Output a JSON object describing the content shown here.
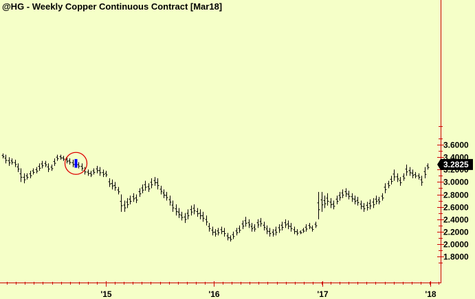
{
  "chart_data": {
    "type": "ohlc",
    "title": "@HG - Weekly  Copper Continuous Contract [Mar18]",
    "xlabel": "",
    "ylabel": "",
    "ylim": [
      1.6,
      4.0
    ],
    "yticks": [
      "1.8000",
      "2.0000",
      "2.2000",
      "2.4000",
      "2.6000",
      "2.8000",
      "3.0000",
      "3.2000",
      "3.4000",
      "3.6000"
    ],
    "xticks": [
      "'15",
      "'16",
      "'17",
      "'18"
    ],
    "last_price_label": "3.2825",
    "grid": false,
    "colors": {
      "background": "#f5ffc8",
      "axis": "#cc0000",
      "bars": "#000000",
      "highlight_bar": "#0000ff",
      "highlight_circle": "#dd0000",
      "last_price_box": "#000000"
    },
    "highlight_index": 24,
    "bars": [
      {
        "h": 3.46,
        "l": 3.38
      },
      {
        "h": 3.44,
        "l": 3.3
      },
      {
        "h": 3.4,
        "l": 3.26
      },
      {
        "h": 3.38,
        "l": 3.28
      },
      {
        "h": 3.36,
        "l": 3.24
      },
      {
        "h": 3.3,
        "l": 3.16
      },
      {
        "h": 3.22,
        "l": 3.0
      },
      {
        "h": 3.14,
        "l": 2.98
      },
      {
        "h": 3.14,
        "l": 3.04
      },
      {
        "h": 3.18,
        "l": 3.06
      },
      {
        "h": 3.22,
        "l": 3.12
      },
      {
        "h": 3.24,
        "l": 3.14
      },
      {
        "h": 3.3,
        "l": 3.18
      },
      {
        "h": 3.34,
        "l": 3.22
      },
      {
        "h": 3.34,
        "l": 3.24
      },
      {
        "h": 3.3,
        "l": 3.16
      },
      {
        "h": 3.28,
        "l": 3.18
      },
      {
        "h": 3.38,
        "l": 3.26
      },
      {
        "h": 3.44,
        "l": 3.34
      },
      {
        "h": 3.44,
        "l": 3.36
      },
      {
        "h": 3.42,
        "l": 3.34
      },
      {
        "h": 3.4,
        "l": 3.3
      },
      {
        "h": 3.38,
        "l": 3.28
      },
      {
        "h": 3.36,
        "l": 3.24
      },
      {
        "h": 3.37,
        "l": 3.23
      },
      {
        "h": 3.32,
        "l": 3.22
      },
      {
        "h": 3.3,
        "l": 3.18
      },
      {
        "h": 3.24,
        "l": 3.12
      },
      {
        "h": 3.2,
        "l": 3.1
      },
      {
        "h": 3.18,
        "l": 3.08
      },
      {
        "h": 3.22,
        "l": 3.12
      },
      {
        "h": 3.26,
        "l": 3.14
      },
      {
        "h": 3.24,
        "l": 3.1
      },
      {
        "h": 3.2,
        "l": 3.08
      },
      {
        "h": 3.18,
        "l": 3.08
      },
      {
        "h": 3.06,
        "l": 2.92
      },
      {
        "h": 3.04,
        "l": 2.88
      },
      {
        "h": 3.0,
        "l": 2.86
      },
      {
        "h": 2.92,
        "l": 2.8
      },
      {
        "h": 2.8,
        "l": 2.52
      },
      {
        "h": 2.7,
        "l": 2.52
      },
      {
        "h": 2.74,
        "l": 2.58
      },
      {
        "h": 2.78,
        "l": 2.64
      },
      {
        "h": 2.82,
        "l": 2.68
      },
      {
        "h": 2.8,
        "l": 2.66
      },
      {
        "h": 2.9,
        "l": 2.76
      },
      {
        "h": 2.96,
        "l": 2.82
      },
      {
        "h": 3.02,
        "l": 2.86
      },
      {
        "h": 2.98,
        "l": 2.84
      },
      {
        "h": 3.06,
        "l": 2.9
      },
      {
        "h": 3.08,
        "l": 2.94
      },
      {
        "h": 3.06,
        "l": 2.88
      },
      {
        "h": 2.94,
        "l": 2.8
      },
      {
        "h": 2.88,
        "l": 2.74
      },
      {
        "h": 2.84,
        "l": 2.7
      },
      {
        "h": 2.78,
        "l": 2.62
      },
      {
        "h": 2.7,
        "l": 2.52
      },
      {
        "h": 2.64,
        "l": 2.46
      },
      {
        "h": 2.58,
        "l": 2.42
      },
      {
        "h": 2.52,
        "l": 2.38
      },
      {
        "h": 2.5,
        "l": 2.34
      },
      {
        "h": 2.56,
        "l": 2.4
      },
      {
        "h": 2.62,
        "l": 2.46
      },
      {
        "h": 2.64,
        "l": 2.48
      },
      {
        "h": 2.58,
        "l": 2.44
      },
      {
        "h": 2.56,
        "l": 2.4
      },
      {
        "h": 2.52,
        "l": 2.36
      },
      {
        "h": 2.46,
        "l": 2.3
      },
      {
        "h": 2.34,
        "l": 2.2
      },
      {
        "h": 2.28,
        "l": 2.14
      },
      {
        "h": 2.24,
        "l": 2.12
      },
      {
        "h": 2.26,
        "l": 2.14
      },
      {
        "h": 2.28,
        "l": 2.16
      },
      {
        "h": 2.26,
        "l": 2.12
      },
      {
        "h": 2.18,
        "l": 2.06
      },
      {
        "h": 2.14,
        "l": 2.04
      },
      {
        "h": 2.2,
        "l": 2.08
      },
      {
        "h": 2.26,
        "l": 2.14
      },
      {
        "h": 2.3,
        "l": 2.18
      },
      {
        "h": 2.38,
        "l": 2.24
      },
      {
        "h": 2.44,
        "l": 2.28
      },
      {
        "h": 2.4,
        "l": 2.26
      },
      {
        "h": 2.34,
        "l": 2.2
      },
      {
        "h": 2.32,
        "l": 2.2
      },
      {
        "h": 2.4,
        "l": 2.26
      },
      {
        "h": 2.42,
        "l": 2.28
      },
      {
        "h": 2.36,
        "l": 2.22
      },
      {
        "h": 2.3,
        "l": 2.16
      },
      {
        "h": 2.26,
        "l": 2.12
      },
      {
        "h": 2.24,
        "l": 2.12
      },
      {
        "h": 2.28,
        "l": 2.14
      },
      {
        "h": 2.32,
        "l": 2.18
      },
      {
        "h": 2.36,
        "l": 2.22
      },
      {
        "h": 2.4,
        "l": 2.26
      },
      {
        "h": 2.38,
        "l": 2.24
      },
      {
        "h": 2.34,
        "l": 2.2
      },
      {
        "h": 2.28,
        "l": 2.16
      },
      {
        "h": 2.24,
        "l": 2.14
      },
      {
        "h": 2.22,
        "l": 2.16
      },
      {
        "h": 2.26,
        "l": 2.18
      },
      {
        "h": 2.32,
        "l": 2.2
      },
      {
        "h": 2.34,
        "l": 2.24
      },
      {
        "h": 2.3,
        "l": 2.2
      },
      {
        "h": 2.36,
        "l": 2.26
      },
      {
        "h": 2.84,
        "l": 2.4
      },
      {
        "h": 2.84,
        "l": 2.52
      },
      {
        "h": 2.78,
        "l": 2.58
      },
      {
        "h": 2.82,
        "l": 2.62
      },
      {
        "h": 2.74,
        "l": 2.58
      },
      {
        "h": 2.7,
        "l": 2.56
      },
      {
        "h": 2.78,
        "l": 2.64
      },
      {
        "h": 2.84,
        "l": 2.7
      },
      {
        "h": 2.88,
        "l": 2.74
      },
      {
        "h": 2.9,
        "l": 2.76
      },
      {
        "h": 2.86,
        "l": 2.72
      },
      {
        "h": 2.82,
        "l": 2.68
      },
      {
        "h": 2.78,
        "l": 2.64
      },
      {
        "h": 2.76,
        "l": 2.62
      },
      {
        "h": 2.7,
        "l": 2.56
      },
      {
        "h": 2.66,
        "l": 2.52
      },
      {
        "h": 2.68,
        "l": 2.54
      },
      {
        "h": 2.72,
        "l": 2.56
      },
      {
        "h": 2.74,
        "l": 2.58
      },
      {
        "h": 2.78,
        "l": 2.64
      },
      {
        "h": 2.76,
        "l": 2.64
      },
      {
        "h": 2.82,
        "l": 2.7
      },
      {
        "h": 2.98,
        "l": 2.82
      },
      {
        "h": 3.02,
        "l": 2.9
      },
      {
        "h": 3.1,
        "l": 2.96
      },
      {
        "h": 3.2,
        "l": 3.02
      },
      {
        "h": 3.14,
        "l": 3.0
      },
      {
        "h": 3.08,
        "l": 2.94
      },
      {
        "h": 3.14,
        "l": 3.02
      },
      {
        "h": 3.28,
        "l": 3.1
      },
      {
        "h": 3.24,
        "l": 3.1
      },
      {
        "h": 3.2,
        "l": 3.06
      },
      {
        "h": 3.16,
        "l": 3.06
      },
      {
        "h": 3.14,
        "l": 3.04
      },
      {
        "h": 3.1,
        "l": 2.94
      },
      {
        "h": 3.24,
        "l": 3.06
      },
      {
        "h": 3.3,
        "l": 3.2
      }
    ]
  }
}
